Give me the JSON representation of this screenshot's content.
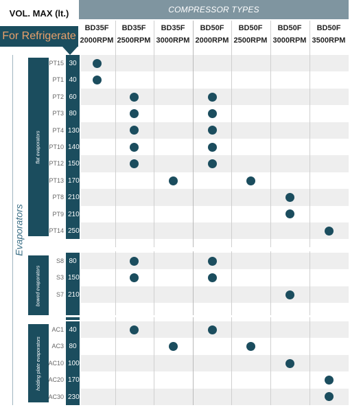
{
  "header": {
    "vol_max": "VOL. MAX (lt.)",
    "for_refrigerate": "For Refrigerate",
    "compressor_types": "COMPRESSOR TYPES"
  },
  "columns": [
    {
      "model": "BD35F",
      "rpm": "2000RPM"
    },
    {
      "model": "BD35F",
      "rpm": "2500RPM"
    },
    {
      "model": "BD35F",
      "rpm": "3000RPM"
    },
    {
      "model": "BD50F",
      "rpm": "2000RPM"
    },
    {
      "model": "BD50F",
      "rpm": "2500RPM"
    },
    {
      "model": "BD50F",
      "rpm": "3000RPM"
    },
    {
      "model": "BD50F",
      "rpm": "3500RPM"
    }
  ],
  "evaporators_label": "Evaporators",
  "groups": [
    {
      "label": "flat evaporators",
      "rows": [
        {
          "code": "PT15",
          "vol": "30",
          "cols": [
            0
          ]
        },
        {
          "code": "PT1",
          "vol": "40",
          "cols": [
            0
          ]
        },
        {
          "code": "PT2",
          "vol": "60",
          "cols": [
            1,
            3
          ]
        },
        {
          "code": "PT3",
          "vol": "80",
          "cols": [
            1,
            3
          ]
        },
        {
          "code": "PT4",
          "vol": "130",
          "cols": [
            1,
            3
          ]
        },
        {
          "code": "PT10",
          "vol": "140",
          "cols": [
            1,
            3
          ]
        },
        {
          "code": "PT12",
          "vol": "150",
          "cols": [
            1,
            3
          ]
        },
        {
          "code": "PT13",
          "vol": "170",
          "cols": [
            2,
            4
          ]
        },
        {
          "code": "PT8",
          "vol": "210",
          "cols": [
            5
          ]
        },
        {
          "code": "PT9",
          "vol": "210",
          "cols": [
            5
          ]
        },
        {
          "code": "PT14",
          "vol": "250",
          "cols": [
            6
          ]
        }
      ]
    },
    {
      "label": "bowed evaporators",
      "rows": [
        {
          "code": "S8",
          "vol": "80",
          "cols": [
            1,
            3
          ]
        },
        {
          "code": "S3",
          "vol": "150",
          "cols": [
            1,
            3
          ]
        },
        {
          "code": "S7",
          "vol": "210",
          "cols": [
            5
          ]
        },
        {
          "code": "",
          "vol": "",
          "cols": []
        }
      ]
    },
    {
      "label": "holding plate evaporators",
      "rows": [
        {
          "code": "AC1",
          "vol": "40",
          "cols": [
            1,
            3
          ]
        },
        {
          "code": "AC3",
          "vol": "80",
          "cols": [
            2,
            4
          ]
        },
        {
          "code": "AC10",
          "vol": "100",
          "cols": [
            5
          ]
        },
        {
          "code": "AC20",
          "vol": "170",
          "cols": [
            6
          ]
        },
        {
          "code": "AC30",
          "vol": "230",
          "cols": [
            6
          ]
        }
      ]
    }
  ]
}
